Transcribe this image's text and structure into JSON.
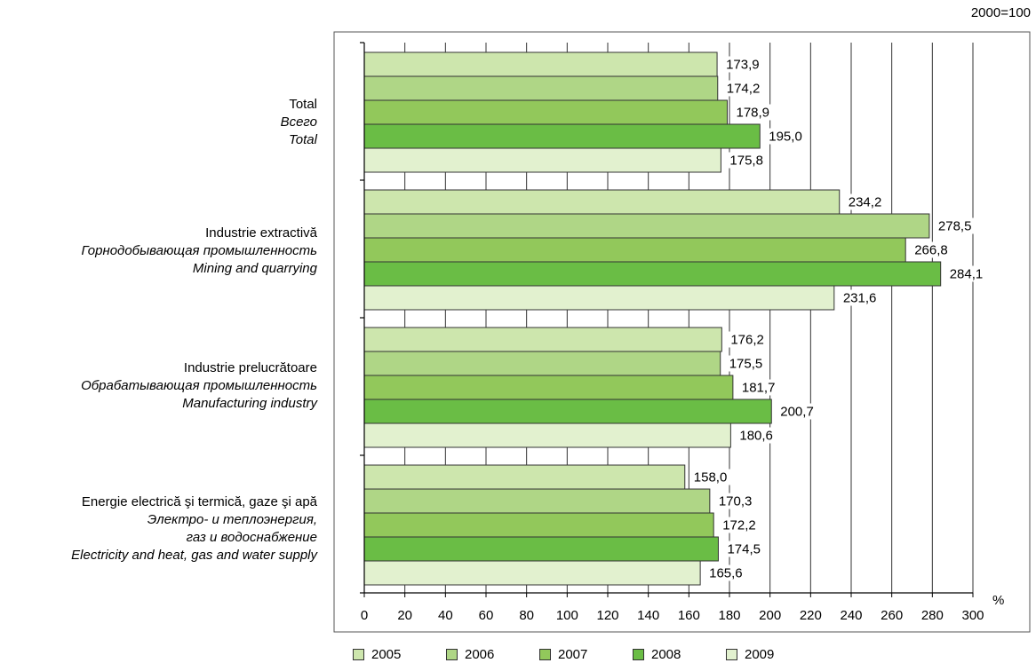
{
  "chart_data": {
    "type": "bar",
    "orientation": "horizontal",
    "note": "2000=100",
    "x_unit": "%",
    "xlim": [
      0,
      300
    ],
    "x_ticks": [
      0,
      20,
      40,
      60,
      80,
      100,
      120,
      140,
      160,
      180,
      200,
      220,
      240,
      260,
      280,
      300
    ],
    "grid": true,
    "legend_position": "bottom",
    "categories": [
      [
        "Total",
        "Всего",
        "Total"
      ],
      [
        "Industrie extractivă",
        "Горнодобывающая промышленность",
        "Mining and quarrying"
      ],
      [
        "Industrie prelucrătoare",
        "Обрабатывающая промышленность",
        "Manufacturing industry"
      ],
      [
        "Energie electrică şi termică, gaze şi apă",
        "Электро- и теплоэнергия,",
        "газ и водоснабжение",
        "Electricity and heat, gas and water supply"
      ]
    ],
    "series": [
      {
        "name": "2005",
        "color": "#cde6ad",
        "values": [
          173.9,
          234.2,
          176.2,
          158.0
        ],
        "labels": [
          "173,9",
          "234,2",
          "176,2",
          "158,0"
        ]
      },
      {
        "name": "2006",
        "color": "#afd686",
        "values": [
          174.2,
          278.5,
          175.5,
          170.3
        ],
        "labels": [
          "174,2",
          "278,5",
          "175,5",
          "170,3"
        ]
      },
      {
        "name": "2007",
        "color": "#92c85b",
        "values": [
          178.9,
          266.8,
          181.7,
          172.2
        ],
        "labels": [
          "178,9",
          "266,8",
          "181,7",
          "172,2"
        ]
      },
      {
        "name": "2008",
        "color": "#6abd45",
        "values": [
          195.0,
          284.1,
          200.7,
          174.5
        ],
        "labels": [
          "195,0",
          "284,1",
          "200,7",
          "174,5"
        ]
      },
      {
        "name": "2009",
        "color": "#e2f1cf",
        "values": [
          175.8,
          231.6,
          180.6,
          165.6
        ],
        "labels": [
          "175,8",
          "231,6",
          "180,6",
          "165,6"
        ]
      }
    ]
  }
}
